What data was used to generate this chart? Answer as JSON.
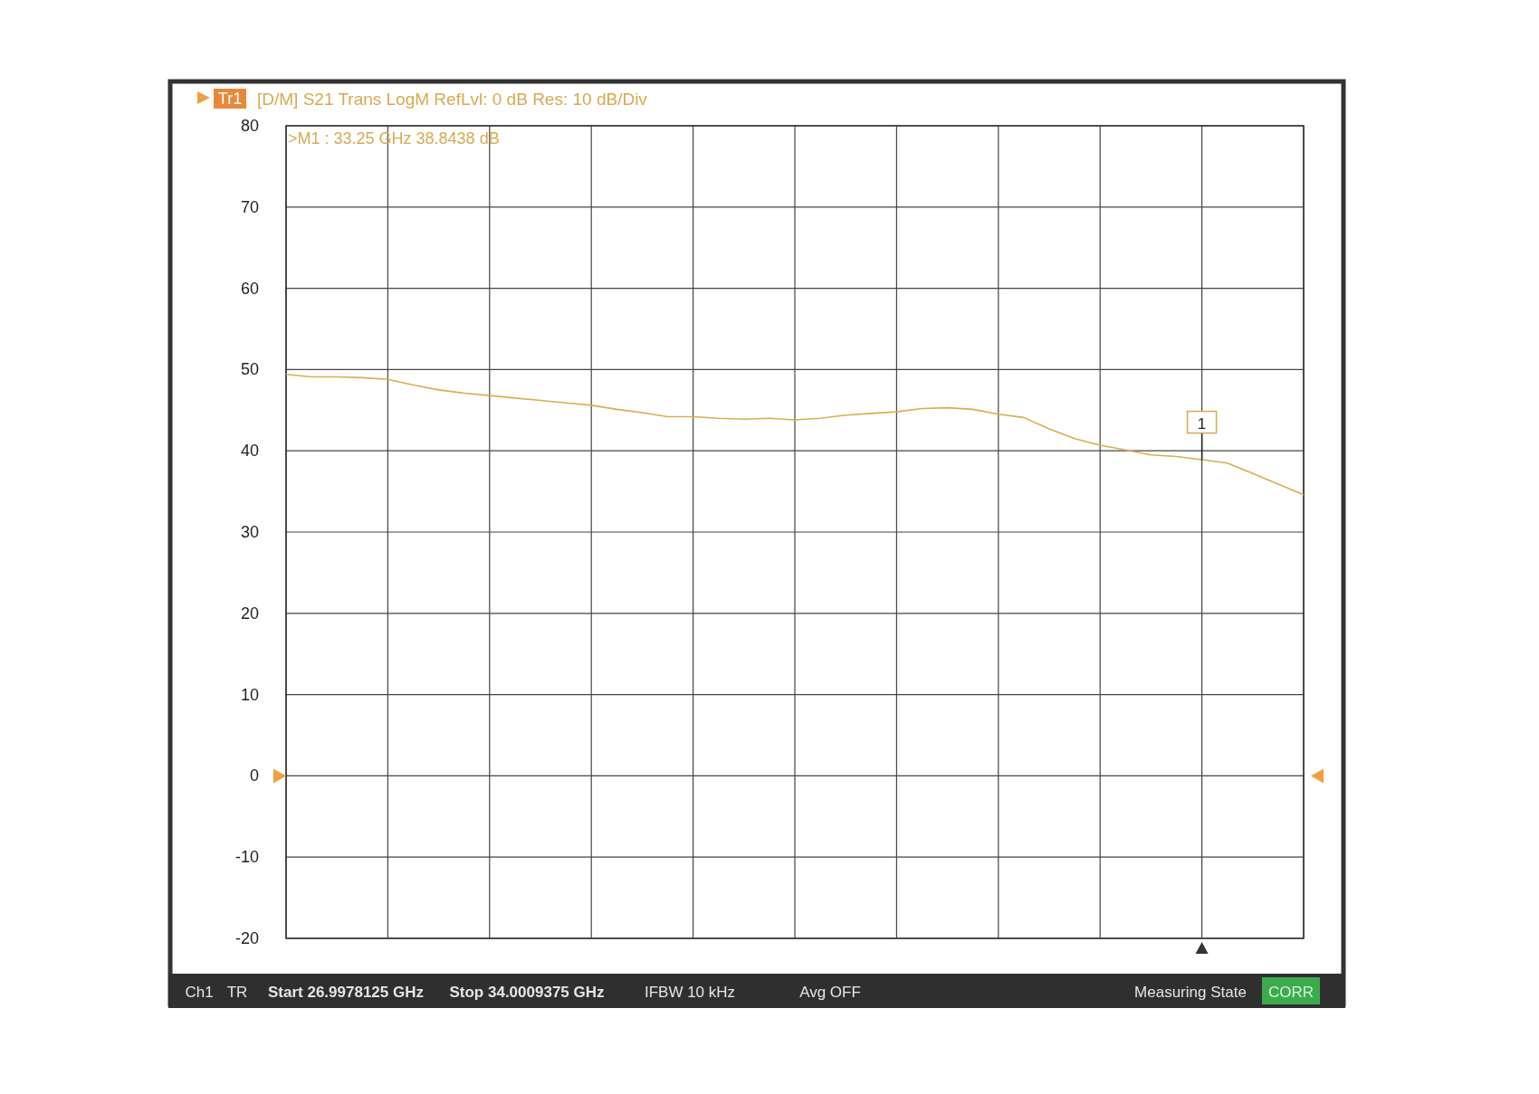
{
  "chart_data": {
    "type": "line",
    "title": "[D/M] S21 Trans LogM RefLvl: 0 dB Res: 10 dB/Div",
    "series": [
      {
        "color": "#d9ae4c",
        "values": [
          49.4,
          49.1,
          49.1,
          49.0,
          48.8,
          48.1,
          47.5,
          47.1,
          46.8,
          46.5,
          46.2,
          45.9,
          45.6,
          45.1,
          44.7,
          44.2,
          44.2,
          44.0,
          43.9,
          44.0,
          43.8,
          44.0,
          44.4,
          44.6,
          44.8,
          45.2,
          45.3,
          45.1,
          44.5,
          44.1,
          42.7,
          41.5,
          40.7,
          40.1,
          39.5,
          39.3,
          38.9,
          38.5,
          37.2,
          35.9,
          34.6
        ]
      }
    ],
    "categories": [
      null,
      null,
      null,
      null,
      null,
      null,
      null,
      null,
      null,
      null,
      null,
      null,
      null,
      null,
      null,
      null,
      null,
      null,
      null,
      null,
      null,
      null,
      null,
      null,
      null,
      null,
      null,
      null,
      null,
      null,
      null,
      null,
      null,
      null,
      null,
      null,
      null,
      null,
      null,
      null,
      null
    ],
    "ylim": [
      -20,
      80
    ],
    "yticks": [
      -20,
      -10,
      0,
      10,
      20,
      30,
      40,
      50,
      60,
      70,
      80
    ],
    "grid": true,
    "tick_labels": "y",
    "marker": "none",
    "line_style": "solid",
    "annotations": [
      "Tr1",
      ">M1 : 33.25 GHz 38.8438 dB",
      {
        "text": "1",
        "y": 38.8438
      },
      "Ch1",
      "TR",
      "Start 26.9978125 GHz",
      "Stop 34.0009375 GHz",
      "IFBW 10 kHz",
      "Avg OFF",
      "Measuring State",
      "CORR"
    ]
  }
}
